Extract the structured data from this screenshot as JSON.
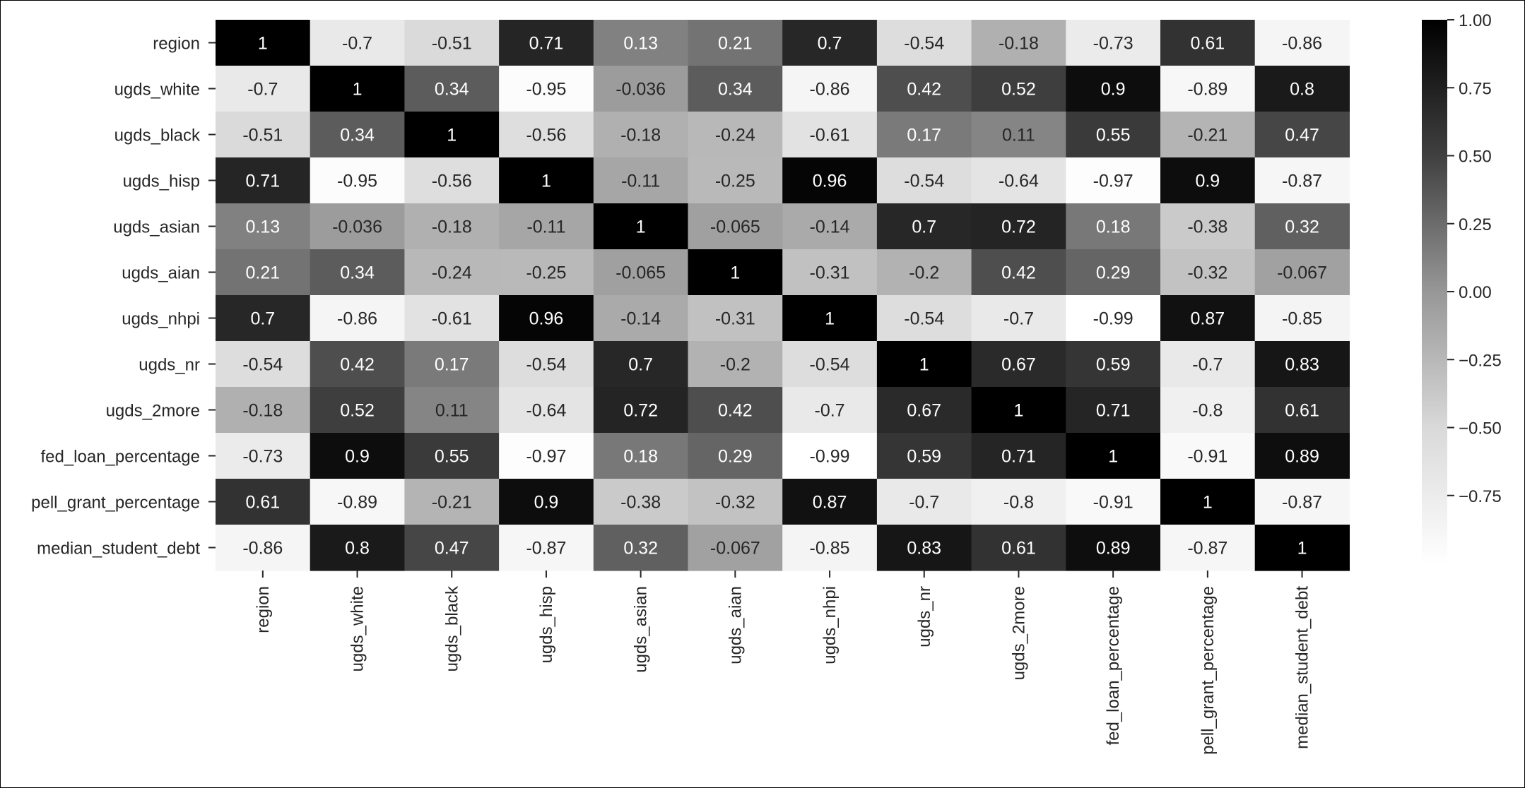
{
  "chart_data": {
    "type": "heatmap",
    "title": "",
    "xlabel": "",
    "ylabel": "",
    "x_labels": [
      "region",
      "ugds_white",
      "ugds_black",
      "ugds_hisp",
      "ugds_asian",
      "ugds_aian",
      "ugds_nhpi",
      "ugds_nr",
      "ugds_2more",
      "fed_loan_percentage",
      "pell_grant_percentage",
      "median_student_debt"
    ],
    "y_labels": [
      "region",
      "ugds_white",
      "ugds_black",
      "ugds_hisp",
      "ugds_asian",
      "ugds_aian",
      "ugds_nhpi",
      "ugds_nr",
      "ugds_2more",
      "fed_loan_percentage",
      "pell_grant_percentage",
      "median_student_debt"
    ],
    "values": [
      [
        1,
        -0.7,
        -0.51,
        0.71,
        0.13,
        0.21,
        0.7,
        -0.54,
        -0.18,
        -0.73,
        0.61,
        -0.86
      ],
      [
        -0.7,
        1,
        0.34,
        -0.95,
        -0.036,
        0.34,
        -0.86,
        0.42,
        0.52,
        0.9,
        -0.89,
        0.8
      ],
      [
        -0.51,
        0.34,
        1,
        -0.56,
        -0.18,
        -0.24,
        -0.61,
        0.17,
        0.11,
        0.55,
        -0.21,
        0.47
      ],
      [
        0.71,
        -0.95,
        -0.56,
        1,
        -0.11,
        -0.25,
        0.96,
        -0.54,
        -0.64,
        -0.97,
        0.9,
        -0.87
      ],
      [
        0.13,
        -0.036,
        -0.18,
        -0.11,
        1,
        -0.065,
        -0.14,
        0.7,
        0.72,
        0.18,
        -0.38,
        0.32
      ],
      [
        0.21,
        0.34,
        -0.24,
        -0.25,
        -0.065,
        1,
        -0.31,
        -0.2,
        0.42,
        0.29,
        -0.32,
        -0.067
      ],
      [
        0.7,
        -0.86,
        -0.61,
        0.96,
        -0.14,
        -0.31,
        1,
        -0.54,
        -0.7,
        -0.99,
        0.87,
        -0.85
      ],
      [
        -0.54,
        0.42,
        0.17,
        -0.54,
        0.7,
        -0.2,
        -0.54,
        1,
        0.67,
        0.59,
        -0.7,
        0.83
      ],
      [
        -0.18,
        0.52,
        0.11,
        -0.64,
        0.72,
        0.42,
        -0.7,
        0.67,
        1,
        0.71,
        -0.8,
        0.61
      ],
      [
        -0.73,
        0.9,
        0.55,
        -0.97,
        0.18,
        0.29,
        -0.99,
        0.59,
        0.71,
        1,
        -0.91,
        0.89
      ],
      [
        0.61,
        -0.89,
        -0.21,
        0.9,
        -0.38,
        -0.32,
        0.87,
        -0.7,
        -0.8,
        -0.91,
        1,
        -0.87
      ],
      [
        -0.86,
        0.8,
        0.47,
        -0.87,
        0.32,
        -0.067,
        -0.85,
        0.83,
        0.61,
        0.89,
        -0.87,
        1
      ]
    ],
    "colormap": "Greys",
    "vmin": -0.99,
    "vmax": 1.0,
    "annotations": true,
    "colorbar": {
      "ticks": [
        1.0,
        0.75,
        0.5,
        0.25,
        0.0,
        -0.25,
        -0.5,
        -0.75
      ],
      "tick_labels": [
        "1.00",
        "0.75",
        "0.50",
        "0.25",
        "0.00",
        "−0.25",
        "−0.50",
        "−0.75"
      ]
    },
    "colors": {
      "low": "#ffffff",
      "high": "#000000",
      "dark_text": "#262626",
      "light_text": "#ffffff",
      "tick_text": "#262626"
    },
    "grid": false,
    "legend": "colorbar-right"
  }
}
